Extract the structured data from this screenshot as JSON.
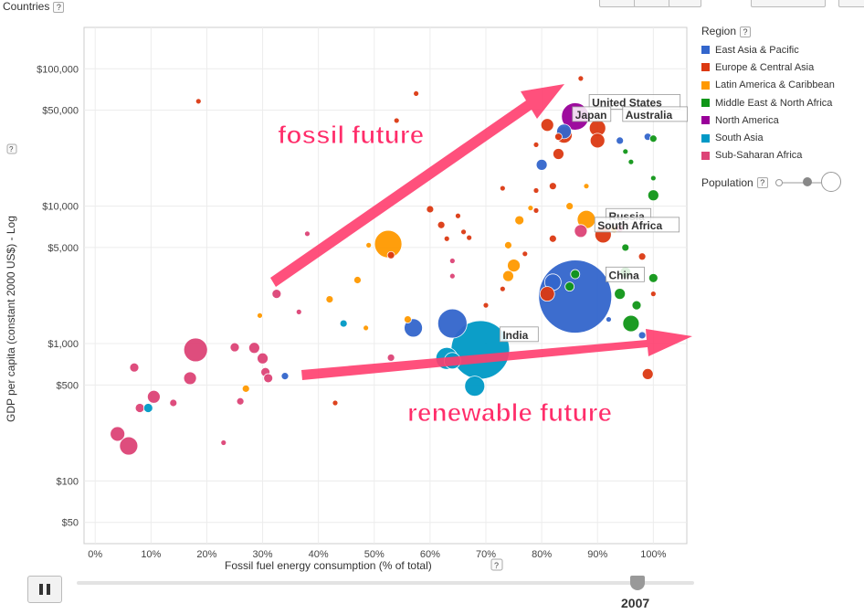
{
  "header": {
    "countries_label": "Countries",
    "help": "?"
  },
  "legend": {
    "title": "Region",
    "items": [
      {
        "label": "East Asia & Pacific",
        "color": "#3366cc"
      },
      {
        "label": "Europe & Central Asia",
        "color": "#dc3912"
      },
      {
        "label": "Latin America & Caribbean",
        "color": "#ff9900"
      },
      {
        "label": "Middle East & North Africa",
        "color": "#109618"
      },
      {
        "label": "North America",
        "color": "#990099"
      },
      {
        "label": "South Asia",
        "color": "#0099c6"
      },
      {
        "label": "Sub-Saharan Africa",
        "color": "#dd4477"
      }
    ]
  },
  "population_label": "Population",
  "timeline": {
    "year": "2007",
    "play_icon": "pause-icon"
  },
  "chart_data": {
    "type": "scatter",
    "xlabel": "Fossil fuel energy consumption (% of total)",
    "ylabel": "GDP per capita (constant 2000 US$) - Log",
    "xlim": [
      -2,
      106
    ],
    "ylim": [
      35,
      200000
    ],
    "yscale": "log",
    "x_ticks": [
      "0%",
      "10%",
      "20%",
      "30%",
      "40%",
      "50%",
      "60%",
      "70%",
      "80%",
      "90%",
      "100%"
    ],
    "y_ticks": [
      {
        "v": 100000,
        "label": "$100,000"
      },
      {
        "v": 50000,
        "label": "$50,000"
      },
      {
        "v": 10000,
        "label": "$10,000"
      },
      {
        "v": 5000,
        "label": "$5,000"
      },
      {
        "v": 1000,
        "label": "$1,000"
      },
      {
        "v": 500,
        "label": "$500"
      },
      {
        "v": 100,
        "label": "$100"
      },
      {
        "v": 50,
        "label": "$50"
      }
    ],
    "points": [
      {
        "x": 4,
        "y": 220,
        "r": 8,
        "c": "#dd4477"
      },
      {
        "x": 6,
        "y": 180,
        "r": 10,
        "c": "#dd4477"
      },
      {
        "x": 7,
        "y": 670,
        "r": 5,
        "c": "#dd4477"
      },
      {
        "x": 8,
        "y": 340,
        "r": 5,
        "c": "#dd4477"
      },
      {
        "x": 9.5,
        "y": 340,
        "r": 5,
        "c": "#0099c6"
      },
      {
        "x": 10.5,
        "y": 410,
        "r": 7,
        "c": "#dd4477"
      },
      {
        "x": 14,
        "y": 370,
        "r": 4,
        "c": "#dd4477"
      },
      {
        "x": 17,
        "y": 560,
        "r": 7,
        "c": "#dd4477"
      },
      {
        "x": 18,
        "y": 900,
        "r": 13,
        "c": "#dd4477"
      },
      {
        "x": 18.5,
        "y": 58000,
        "r": 3,
        "c": "#dc3912"
      },
      {
        "x": 23,
        "y": 190,
        "r": 3,
        "c": "#dd4477"
      },
      {
        "x": 25,
        "y": 940,
        "r": 5,
        "c": "#dd4477"
      },
      {
        "x": 26,
        "y": 380,
        "r": 4,
        "c": "#dd4477"
      },
      {
        "x": 27,
        "y": 470,
        "r": 4,
        "c": "#ff9900"
      },
      {
        "x": 28.5,
        "y": 930,
        "r": 6,
        "c": "#dd4477"
      },
      {
        "x": 29.5,
        "y": 1600,
        "r": 3,
        "c": "#ff9900"
      },
      {
        "x": 30,
        "y": 780,
        "r": 6,
        "c": "#dd4477"
      },
      {
        "x": 30.5,
        "y": 620,
        "r": 5,
        "c": "#dd4477"
      },
      {
        "x": 31,
        "y": 560,
        "r": 5,
        "c": "#dd4477"
      },
      {
        "x": 32.5,
        "y": 2300,
        "r": 5,
        "c": "#dd4477"
      },
      {
        "x": 34,
        "y": 580,
        "r": 4,
        "c": "#3366cc"
      },
      {
        "x": 36.5,
        "y": 1700,
        "r": 3,
        "c": "#dd4477"
      },
      {
        "x": 38,
        "y": 6300,
        "r": 3,
        "c": "#dd4477"
      },
      {
        "x": 42,
        "y": 2100,
        "r": 4,
        "c": "#ff9900"
      },
      {
        "x": 43,
        "y": 370,
        "r": 3,
        "c": "#dc3912"
      },
      {
        "x": 44.5,
        "y": 1400,
        "r": 4,
        "c": "#0099c6"
      },
      {
        "x": 47,
        "y": 2900,
        "r": 4,
        "c": "#ff9900"
      },
      {
        "x": 48.5,
        "y": 1300,
        "r": 3,
        "c": "#ff9900"
      },
      {
        "x": 49,
        "y": 5200,
        "r": 3,
        "c": "#ff9900"
      },
      {
        "x": 52.5,
        "y": 5300,
        "r": 15,
        "c": "#ff9900"
      },
      {
        "x": 53,
        "y": 4400,
        "r": 4,
        "c": "#dc3912"
      },
      {
        "x": 53,
        "y": 790,
        "r": 4,
        "c": "#dd4477"
      },
      {
        "x": 54,
        "y": 42000,
        "r": 3,
        "c": "#dc3912"
      },
      {
        "x": 56,
        "y": 1500,
        "r": 4,
        "c": "#ff9900"
      },
      {
        "x": 57,
        "y": 1300,
        "r": 10,
        "c": "#3366cc"
      },
      {
        "x": 57.5,
        "y": 66000,
        "r": 3,
        "c": "#dc3912"
      },
      {
        "x": 60,
        "y": 9500,
        "r": 4,
        "c": "#dc3912"
      },
      {
        "x": 62,
        "y": 7300,
        "r": 4,
        "c": "#dc3912"
      },
      {
        "x": 63,
        "y": 5800,
        "r": 3,
        "c": "#dc3912"
      },
      {
        "x": 63,
        "y": 780,
        "r": 12,
        "c": "#0099c6"
      },
      {
        "x": 64,
        "y": 4000,
        "r": 3,
        "c": "#dd4477"
      },
      {
        "x": 64,
        "y": 3100,
        "r": 3,
        "c": "#dd4477"
      },
      {
        "x": 64,
        "y": 1400,
        "r": 16,
        "c": "#3366cc"
      },
      {
        "x": 64,
        "y": 750,
        "r": 9,
        "c": "#0099c6"
      },
      {
        "x": 65,
        "y": 8500,
        "r": 3,
        "c": "#dc3912"
      },
      {
        "x": 66,
        "y": 6500,
        "r": 3,
        "c": "#dc3912"
      },
      {
        "x": 67,
        "y": 5900,
        "r": 3,
        "c": "#dc3912"
      },
      {
        "x": 68,
        "y": 490,
        "r": 11,
        "c": "#0099c6"
      },
      {
        "x": 69,
        "y": 900,
        "r": 32,
        "c": "#0099c6"
      },
      {
        "x": 70,
        "y": 1900,
        "r": 3,
        "c": "#dc3912"
      },
      {
        "x": 73,
        "y": 2500,
        "r": 3,
        "c": "#dc3912"
      },
      {
        "x": 73,
        "y": 13500,
        "r": 3,
        "c": "#dc3912"
      },
      {
        "x": 74,
        "y": 5200,
        "r": 4,
        "c": "#ff9900"
      },
      {
        "x": 74,
        "y": 3100,
        "r": 6,
        "c": "#ff9900"
      },
      {
        "x": 75,
        "y": 3700,
        "r": 7,
        "c": "#ff9900"
      },
      {
        "x": 76,
        "y": 7900,
        "r": 5,
        "c": "#ff9900"
      },
      {
        "x": 77,
        "y": 4500,
        "r": 3,
        "c": "#dc3912"
      },
      {
        "x": 78,
        "y": 9700,
        "r": 3,
        "c": "#ff9900"
      },
      {
        "x": 79,
        "y": 13000,
        "r": 3,
        "c": "#dc3912"
      },
      {
        "x": 79,
        "y": 28000,
        "r": 3,
        "c": "#dc3912"
      },
      {
        "x": 79,
        "y": 9300,
        "r": 3,
        "c": "#dc3912"
      },
      {
        "x": 80,
        "y": 20000,
        "r": 6,
        "c": "#3366cc"
      },
      {
        "x": 81,
        "y": 2300,
        "r": 8,
        "c": "#dc3912"
      },
      {
        "x": 81,
        "y": 39000,
        "r": 7,
        "c": "#dc3912"
      },
      {
        "x": 82,
        "y": 2800,
        "r": 9,
        "c": "#3366cc"
      },
      {
        "x": 82,
        "y": 14000,
        "r": 4,
        "c": "#dc3912"
      },
      {
        "x": 82,
        "y": 5800,
        "r": 4,
        "c": "#dc3912"
      },
      {
        "x": 83,
        "y": 24000,
        "r": 6,
        "c": "#dc3912"
      },
      {
        "x": 83,
        "y": 32000,
        "r": 4,
        "c": "#dc3912"
      },
      {
        "x": 84,
        "y": 35000,
        "r": 8,
        "c": "#3366cc"
      },
      {
        "x": 84,
        "y": 33000,
        "r": 9,
        "c": "#dc3912"
      },
      {
        "x": 85,
        "y": 2600,
        "r": 5,
        "c": "#109618"
      },
      {
        "x": 85,
        "y": 10000,
        "r": 4,
        "c": "#ff9900"
      },
      {
        "x": 86,
        "y": 2200,
        "r": 40,
        "c": "#3366cc"
      },
      {
        "x": 86,
        "y": 45000,
        "r": 15,
        "c": "#990099"
      },
      {
        "x": 86,
        "y": 3200,
        "r": 5,
        "c": "#109618"
      },
      {
        "x": 87,
        "y": 6600,
        "r": 7,
        "c": "#dd4477"
      },
      {
        "x": 87,
        "y": 85000,
        "r": 3,
        "c": "#dc3912"
      },
      {
        "x": 88,
        "y": 8000,
        "r": 10,
        "c": "#ff9900"
      },
      {
        "x": 88,
        "y": 14000,
        "r": 3,
        "c": "#ff9900"
      },
      {
        "x": 90,
        "y": 30000,
        "r": 8,
        "c": "#dc3912"
      },
      {
        "x": 90,
        "y": 37000,
        "r": 9,
        "c": "#dc3912"
      },
      {
        "x": 91,
        "y": 6200,
        "r": 9,
        "c": "#dc3912"
      },
      {
        "x": 92,
        "y": 1500,
        "r": 3,
        "c": "#3366cc"
      },
      {
        "x": 93,
        "y": 6800,
        "r": 4,
        "c": "#ff9900"
      },
      {
        "x": 94,
        "y": 2300,
        "r": 6,
        "c": "#109618"
      },
      {
        "x": 94,
        "y": 6900,
        "r": 4,
        "c": "#dd4477"
      },
      {
        "x": 94,
        "y": 30000,
        "r": 4,
        "c": "#3366cc"
      },
      {
        "x": 95,
        "y": 3300,
        "r": 6,
        "c": "#109618"
      },
      {
        "x": 95,
        "y": 5000,
        "r": 4,
        "c": "#109618"
      },
      {
        "x": 95,
        "y": 25000,
        "r": 3,
        "c": "#109618"
      },
      {
        "x": 96,
        "y": 1400,
        "r": 9,
        "c": "#109618"
      },
      {
        "x": 96,
        "y": 21000,
        "r": 3,
        "c": "#109618"
      },
      {
        "x": 97,
        "y": 1900,
        "r": 5,
        "c": "#109618"
      },
      {
        "x": 98,
        "y": 4300,
        "r": 4,
        "c": "#dc3912"
      },
      {
        "x": 98,
        "y": 1150,
        "r": 4,
        "c": "#3366cc"
      },
      {
        "x": 99,
        "y": 600,
        "r": 6,
        "c": "#dc3912"
      },
      {
        "x": 99,
        "y": 32000,
        "r": 4,
        "c": "#3366cc"
      },
      {
        "x": 100,
        "y": 31000,
        "r": 4,
        "c": "#109618"
      },
      {
        "x": 100,
        "y": 12000,
        "r": 6,
        "c": "#109618"
      },
      {
        "x": 100,
        "y": 16000,
        "r": 3,
        "c": "#109618"
      },
      {
        "x": 100,
        "y": 3000,
        "r": 5,
        "c": "#109618"
      },
      {
        "x": 100,
        "y": 2300,
        "r": 3,
        "c": "#dc3912"
      }
    ],
    "labels": [
      {
        "text": "United States",
        "x": 89,
        "y": 54000
      },
      {
        "text": "Japan",
        "x": 86,
        "y": 44000
      },
      {
        "text": "Australia",
        "x": 95,
        "y": 44000
      },
      {
        "text": "Russia",
        "x": 92,
        "y": 8000
      },
      {
        "text": "South Africa",
        "x": 90,
        "y": 6900
      },
      {
        "text": "China",
        "x": 92,
        "y": 3000
      },
      {
        "text": "India",
        "x": 73,
        "y": 1100
      }
    ],
    "annotations": {
      "fossil": "fossil future",
      "renewable": "renewable future"
    }
  }
}
